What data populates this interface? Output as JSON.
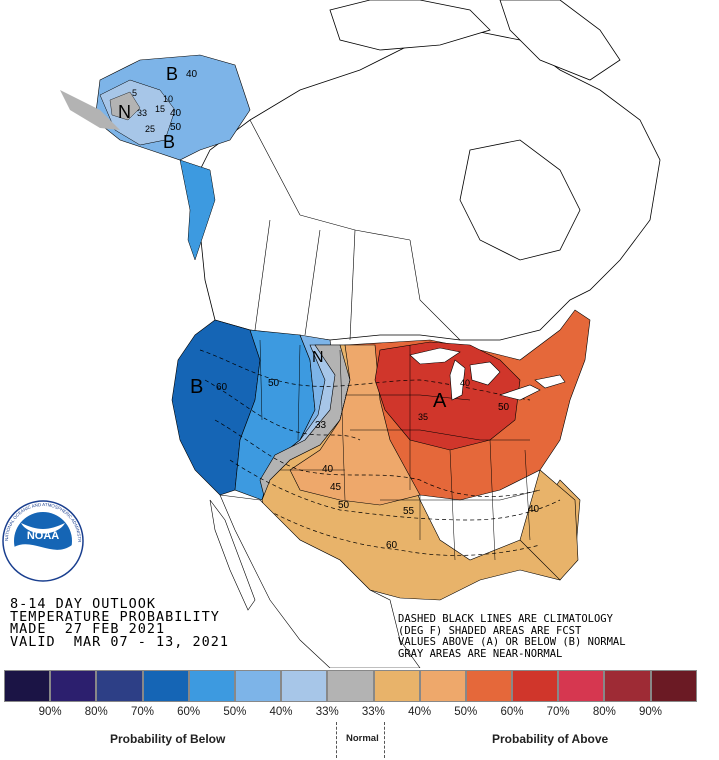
{
  "title": {
    "line1": "8-14 DAY OUTLOOK",
    "line2": "TEMPERATURE PROBABILITY",
    "line3": "MADE  27 FEB 2021",
    "line4": "VALID  MAR 07 - 13, 2021"
  },
  "notes": {
    "line1": "DASHED BLACK LINES ARE CLIMATOLOGY",
    "line2": "(DEG F) SHADED AREAS ARE FCST",
    "line3": "VALUES ABOVE (A) OR BELOW (B) NORMAL",
    "line4": "GRAY AREAS ARE NEAR-NORMAL"
  },
  "map_labels": {
    "below_west": "B",
    "below_alaska_north": "B",
    "below_alaska_south": "B",
    "near_normal_alaska": "N",
    "near_normal_plains": "N",
    "above_greatlakes": "A",
    "ak_40": "40",
    "ak_10": "10",
    "ak_5": "5",
    "ak_33": "33",
    "ak_15": "15",
    "ak_40b": "40",
    "ak_50": "50",
    "ak_25": "25",
    "c60_west": "60",
    "c50_west": "50",
    "c33_plains": "33",
    "c40_south": "40",
    "c45": "45",
    "c50_south": "50",
    "c55": "55",
    "c60_south": "60",
    "c40_se": "40",
    "c35": "35",
    "c40_gl": "40",
    "c50_east": "50"
  },
  "legend": {
    "swatches": [
      "#1b1445",
      "#2c1f6e",
      "#2d3f86",
      "#1565b5",
      "#3d9ae0",
      "#7db4e8",
      "#a7c6e8",
      "#b3b3b3",
      "#e8b36a",
      "#eea86b",
      "#e5683a",
      "#d0362b",
      "#d63750",
      "#9e2b35",
      "#6b1a24"
    ],
    "percents": [
      "90%",
      "80%",
      "70%",
      "60%",
      "50%",
      "40%",
      "33%",
      "33%",
      "40%",
      "50%",
      "60%",
      "70%",
      "80%",
      "90%"
    ],
    "below_caption": "Probability of Below",
    "normal_caption": "Normal",
    "above_caption": "Probability of Above"
  },
  "logo": {
    "text": "NOAA",
    "ring_text": "NATIONAL OCEANIC AND ATMOSPHERIC ADMINISTRATION"
  }
}
